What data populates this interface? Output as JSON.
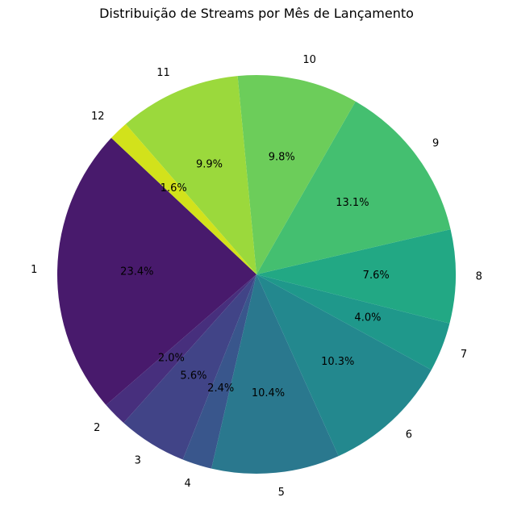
{
  "chart_data": {
    "type": "pie",
    "title": "Distribuição de Streams por Mês de Lançamento",
    "start_angle_deg": 136.8,
    "direction": "counterclockwise",
    "slices": [
      {
        "label": "1",
        "value": 23.4,
        "pct_label": "23.4%",
        "color": "#481a6c"
      },
      {
        "label": "2",
        "value": 2.0,
        "pct_label": "2.0%",
        "color": "#472f7d"
      },
      {
        "label": "3",
        "value": 5.6,
        "pct_label": "5.6%",
        "color": "#414487"
      },
      {
        "label": "4",
        "value": 2.4,
        "pct_label": "2.4%",
        "color": "#39568c"
      },
      {
        "label": "5",
        "value": 10.4,
        "pct_label": "10.4%",
        "color": "#2a788e"
      },
      {
        "label": "6",
        "value": 10.3,
        "pct_label": "10.3%",
        "color": "#23888e"
      },
      {
        "label": "7",
        "value": 4.0,
        "pct_label": "4.0%",
        "color": "#1f988b"
      },
      {
        "label": "8",
        "value": 7.6,
        "pct_label": "7.6%",
        "color": "#22a884"
      },
      {
        "label": "9",
        "value": 13.1,
        "pct_label": "13.1%",
        "color": "#44bf70"
      },
      {
        "label": "10",
        "value": 9.8,
        "pct_label": "9.8%",
        "color": "#6ccd5a"
      },
      {
        "label": "11",
        "value": 9.9,
        "pct_label": "9.9%",
        "color": "#9bd93c"
      },
      {
        "label": "12",
        "value": 1.6,
        "pct_label": "1.6%",
        "color": "#d2e21b"
      }
    ]
  }
}
